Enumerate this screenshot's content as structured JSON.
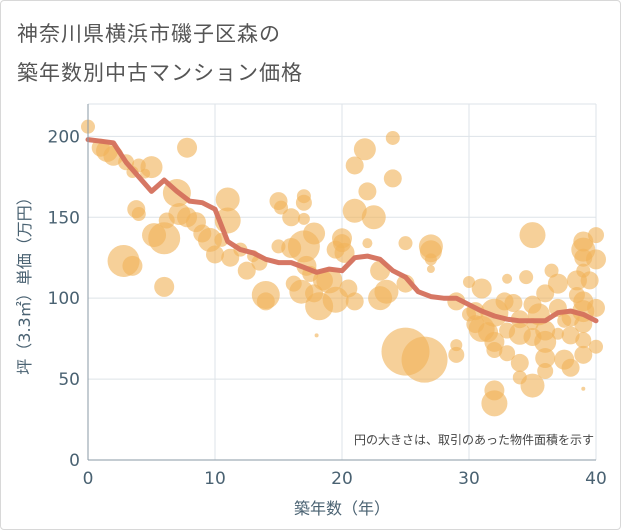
{
  "title_line1": "神奈川県横浜市磯子区森の",
  "title_line2": "築年数別中古マンション価格",
  "chart_data": {
    "type": "scatter",
    "xlabel": "築年数（年）",
    "ylabel": "坪（3.3㎡）単価（万円）",
    "xlim": [
      0,
      40
    ],
    "ylim": [
      0,
      220
    ],
    "xticks": [
      0,
      10,
      20,
      30,
      40
    ],
    "yticks": [
      0,
      50,
      100,
      150,
      200
    ],
    "grid": true,
    "annotation": "円の大きさは、取引のあった物件面積を示す",
    "colors": {
      "bubble": "#f0b35a",
      "line": "#d4705c",
      "grid": "#dde3e8",
      "tick": "#4a6272"
    },
    "trend": {
      "x": [
        0,
        1,
        2,
        3,
        4,
        5,
        6,
        7,
        8,
        9,
        10,
        11,
        12,
        13,
        14,
        15,
        16,
        17,
        18,
        19,
        20,
        21,
        22,
        23,
        24,
        25,
        26,
        27,
        28,
        29,
        30,
        31,
        32,
        33,
        34,
        35,
        36,
        37,
        38,
        39,
        40
      ],
      "y": [
        198,
        197,
        196,
        184,
        175,
        166,
        173,
        166,
        160,
        159,
        155,
        135,
        130,
        128,
        124,
        122,
        122,
        119,
        116,
        118,
        117,
        125,
        126,
        124,
        117,
        113,
        104,
        101,
        100,
        100,
        96,
        92,
        89,
        87,
        86,
        86,
        86,
        91,
        92,
        90,
        86
      ]
    },
    "bubbles": [
      [
        0,
        206,
        7
      ],
      [
        1,
        193,
        9
      ],
      [
        1.5,
        191,
        11
      ],
      [
        2,
        188,
        10
      ],
      [
        3,
        184,
        8
      ],
      [
        3.5,
        178,
        6
      ],
      [
        4,
        182,
        7
      ],
      [
        4.5,
        177,
        5
      ],
      [
        5,
        181,
        11
      ],
      [
        3.8,
        155,
        9
      ],
      [
        4,
        152,
        7
      ],
      [
        2.8,
        123,
        16
      ],
      [
        3.5,
        120,
        10
      ],
      [
        5.2,
        139,
        12
      ],
      [
        6,
        137,
        16
      ],
      [
        6,
        107,
        10
      ],
      [
        6.2,
        148,
        8
      ],
      [
        7,
        165,
        14
      ],
      [
        7.2,
        152,
        11
      ],
      [
        7.8,
        150,
        10
      ],
      [
        7.8,
        193,
        10
      ],
      [
        8.5,
        147,
        10
      ],
      [
        9,
        140,
        9
      ],
      [
        9.6,
        136,
        12
      ],
      [
        10,
        127,
        9
      ],
      [
        10.5,
        136,
        7
      ],
      [
        11,
        161,
        12
      ],
      [
        11,
        148,
        13
      ],
      [
        11.2,
        125,
        9
      ],
      [
        12,
        130,
        7
      ],
      [
        12.5,
        117,
        9
      ],
      [
        13,
        126,
        6
      ],
      [
        13.5,
        122,
        8
      ],
      [
        14,
        102,
        14
      ],
      [
        14,
        98,
        9
      ],
      [
        15,
        132,
        7
      ],
      [
        15,
        160,
        9
      ],
      [
        15.2,
        156,
        7
      ],
      [
        16,
        150,
        9
      ],
      [
        16,
        131,
        10
      ],
      [
        16.2,
        109,
        8
      ],
      [
        16.8,
        104,
        12
      ],
      [
        17,
        163,
        7
      ],
      [
        17,
        159,
        8
      ],
      [
        17,
        149,
        6
      ],
      [
        17,
        132,
        16
      ],
      [
        17.2,
        120,
        10
      ],
      [
        17.5,
        115,
        8
      ],
      [
        17.8,
        140,
        11
      ],
      [
        17.8,
        103,
        9
      ],
      [
        18.2,
        95,
        14
      ],
      [
        18,
        77,
        2
      ],
      [
        18.5,
        111,
        10
      ],
      [
        19,
        111,
        13
      ],
      [
        19.5,
        99,
        13
      ],
      [
        19.5,
        130,
        9
      ],
      [
        20,
        134,
        9
      ],
      [
        20,
        137,
        10
      ],
      [
        20.2,
        128,
        10
      ],
      [
        20.5,
        106,
        9
      ],
      [
        21,
        154,
        12
      ],
      [
        21,
        98,
        9
      ],
      [
        21,
        182,
        9
      ],
      [
        21.8,
        192,
        11
      ],
      [
        22,
        166,
        9
      ],
      [
        22,
        134,
        5
      ],
      [
        22.5,
        150,
        12
      ],
      [
        23,
        117,
        10
      ],
      [
        23,
        100,
        12
      ],
      [
        23.5,
        104,
        12
      ],
      [
        24,
        199,
        7
      ],
      [
        24,
        174,
        9
      ],
      [
        25,
        134,
        7
      ],
      [
        25,
        109,
        9
      ],
      [
        25,
        67,
        24
      ],
      [
        26.5,
        62,
        23
      ],
      [
        27,
        129,
        11
      ],
      [
        27,
        132,
        12
      ],
      [
        27,
        124,
        6
      ],
      [
        27,
        118,
        4
      ],
      [
        29,
        65,
        8
      ],
      [
        29,
        71,
        6
      ],
      [
        29,
        98,
        9
      ],
      [
        30,
        90,
        7
      ],
      [
        30,
        110,
        6
      ],
      [
        30.5,
        84,
        9
      ],
      [
        30.5,
        92,
        9
      ],
      [
        31,
        106,
        10
      ],
      [
        31,
        81,
        13
      ],
      [
        31.5,
        79,
        10
      ],
      [
        32,
        91,
        14
      ],
      [
        32,
        73,
        10
      ],
      [
        32,
        68,
        8
      ],
      [
        32,
        43,
        10
      ],
      [
        32,
        35,
        13
      ],
      [
        32.8,
        98,
        9
      ],
      [
        33,
        112,
        5
      ],
      [
        33,
        66,
        8
      ],
      [
        33,
        80,
        8
      ],
      [
        33.5,
        97,
        9
      ],
      [
        34,
        87,
        9
      ],
      [
        34,
        78,
        11
      ],
      [
        34,
        60,
        9
      ],
      [
        34,
        51,
        7
      ],
      [
        34.5,
        113,
        7
      ],
      [
        35,
        96,
        9
      ],
      [
        35,
        139,
        13
      ],
      [
        35,
        84,
        6
      ],
      [
        35,
        76,
        9
      ],
      [
        35,
        46,
        12
      ],
      [
        35.5,
        90,
        11
      ],
      [
        36,
        103,
        9
      ],
      [
        36,
        80,
        10
      ],
      [
        36,
        73,
        11
      ],
      [
        36,
        63,
        10
      ],
      [
        36,
        55,
        8
      ],
      [
        36.5,
        117,
        7
      ],
      [
        37,
        109,
        10
      ],
      [
        37,
        94,
        9
      ],
      [
        37,
        78,
        6
      ],
      [
        37.5,
        86,
        7
      ],
      [
        37.5,
        62,
        10
      ],
      [
        38,
        88,
        9
      ],
      [
        38,
        77,
        9
      ],
      [
        38,
        57,
        9
      ],
      [
        38.5,
        102,
        8
      ],
      [
        38.5,
        111,
        10
      ],
      [
        39,
        135,
        10
      ],
      [
        39,
        130,
        12
      ],
      [
        39,
        125,
        9
      ],
      [
        39,
        117,
        7
      ],
      [
        39,
        98,
        10
      ],
      [
        39,
        92,
        11
      ],
      [
        39,
        84,
        9
      ],
      [
        39,
        74,
        8
      ],
      [
        39,
        65,
        9
      ],
      [
        39,
        44,
        2
      ],
      [
        39.5,
        111,
        9
      ],
      [
        40,
        139,
        8
      ],
      [
        40,
        124,
        10
      ],
      [
        40,
        94,
        9
      ],
      [
        40,
        70,
        7
      ]
    ]
  }
}
